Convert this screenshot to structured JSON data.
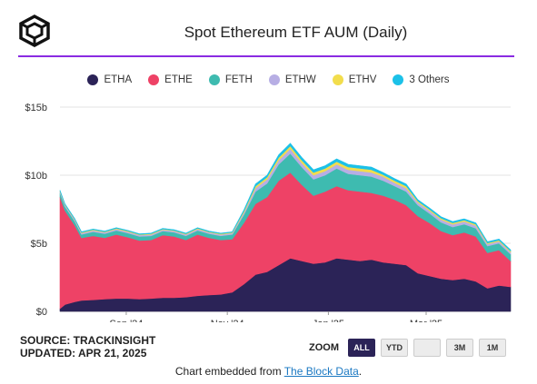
{
  "header": {
    "title": "Spot Ethereum ETF AUM (Daily)"
  },
  "footer": {
    "source": "SOURCE: TRACKINSIGHT",
    "updated": "UPDATED: APR 21, 2025",
    "zoom_label": "ZOOM",
    "zoom_buttons": [
      "ALL",
      "YTD",
      "",
      "3M",
      "1M"
    ],
    "embed_prefix": "Chart embedded from ",
    "embed_link": "The Block Data",
    "embed_suffix": "."
  },
  "chart_data": {
    "type": "area",
    "stacked": true,
    "yticks": [
      "$0",
      "$5b",
      "$10b",
      "$15b"
    ],
    "ylim": [
      0,
      15
    ],
    "y_unit": "billion USD",
    "xticks": [
      {
        "label": "Sep '24",
        "date": "2024-09-01"
      },
      {
        "label": "Nov '24",
        "date": "2024-11-01"
      },
      {
        "label": "Jan '25",
        "date": "2025-01-01"
      },
      {
        "label": "Mar '25",
        "date": "2025-03-01"
      }
    ],
    "x": [
      "2024-07-23",
      "2024-07-26",
      "2024-08-01",
      "2024-08-05",
      "2024-08-12",
      "2024-08-19",
      "2024-08-26",
      "2024-09-02",
      "2024-09-09",
      "2024-09-16",
      "2024-09-23",
      "2024-09-30",
      "2024-10-07",
      "2024-10-14",
      "2024-10-21",
      "2024-10-28",
      "2024-11-04",
      "2024-11-11",
      "2024-11-18",
      "2024-11-25",
      "2024-12-02",
      "2024-12-09",
      "2024-12-16",
      "2024-12-23",
      "2024-12-30",
      "2025-01-06",
      "2025-01-13",
      "2025-01-20",
      "2025-01-27",
      "2025-02-03",
      "2025-02-10",
      "2025-02-17",
      "2025-02-24",
      "2025-03-03",
      "2025-03-10",
      "2025-03-17",
      "2025-03-24",
      "2025-03-31",
      "2025-04-07",
      "2025-04-14",
      "2025-04-21"
    ],
    "series": [
      {
        "name": "ETHA",
        "color": "#2b2357",
        "values": [
          0.2,
          0.5,
          0.7,
          0.8,
          0.85,
          0.9,
          0.95,
          0.95,
          0.9,
          0.95,
          1.0,
          1.0,
          1.05,
          1.15,
          1.2,
          1.25,
          1.4,
          2.0,
          2.7,
          2.9,
          3.4,
          3.9,
          3.7,
          3.5,
          3.6,
          3.9,
          3.8,
          3.7,
          3.8,
          3.6,
          3.5,
          3.4,
          2.8,
          2.6,
          2.4,
          2.3,
          2.4,
          2.2,
          1.7,
          1.9,
          1.8
        ]
      },
      {
        "name": "ETHE",
        "color": "#ee4266",
        "values": [
          8.2,
          6.9,
          5.6,
          4.6,
          4.7,
          4.5,
          4.7,
          4.5,
          4.3,
          4.3,
          4.6,
          4.5,
          4.2,
          4.5,
          4.2,
          4.0,
          3.9,
          4.5,
          5.2,
          5.5,
          6.2,
          6.3,
          5.6,
          5.0,
          5.2,
          5.3,
          5.1,
          5.1,
          4.9,
          4.9,
          4.7,
          4.4,
          4.2,
          3.9,
          3.5,
          3.3,
          3.4,
          3.3,
          2.6,
          2.6,
          1.9
        ]
      },
      {
        "name": "FETH",
        "color": "#3ebbb0",
        "values": [
          0.3,
          0.3,
          0.3,
          0.25,
          0.3,
          0.3,
          0.3,
          0.3,
          0.3,
          0.3,
          0.3,
          0.3,
          0.3,
          0.3,
          0.3,
          0.3,
          0.35,
          0.6,
          0.9,
          1.0,
          1.2,
          1.4,
          1.3,
          1.2,
          1.2,
          1.3,
          1.2,
          1.2,
          1.2,
          1.1,
          1.0,
          1.0,
          0.8,
          0.7,
          0.65,
          0.6,
          0.6,
          0.6,
          0.5,
          0.5,
          0.5
        ]
      },
      {
        "name": "ETHW",
        "color": "#b7aee4",
        "values": [
          0.1,
          0.1,
          0.1,
          0.1,
          0.1,
          0.1,
          0.1,
          0.1,
          0.1,
          0.1,
          0.1,
          0.1,
          0.1,
          0.1,
          0.1,
          0.1,
          0.1,
          0.15,
          0.25,
          0.3,
          0.3,
          0.35,
          0.3,
          0.3,
          0.3,
          0.3,
          0.3,
          0.3,
          0.3,
          0.3,
          0.25,
          0.25,
          0.2,
          0.2,
          0.2,
          0.2,
          0.2,
          0.2,
          0.15,
          0.15,
          0.15
        ]
      },
      {
        "name": "ETHV",
        "color": "#f2dd4c",
        "values": [
          0.05,
          0.05,
          0.05,
          0.05,
          0.05,
          0.05,
          0.05,
          0.05,
          0.05,
          0.05,
          0.05,
          0.05,
          0.05,
          0.05,
          0.05,
          0.05,
          0.05,
          0.1,
          0.15,
          0.15,
          0.2,
          0.2,
          0.2,
          0.2,
          0.2,
          0.2,
          0.2,
          0.2,
          0.2,
          0.15,
          0.15,
          0.15,
          0.1,
          0.1,
          0.1,
          0.1,
          0.1,
          0.1,
          0.08,
          0.08,
          0.08
        ]
      },
      {
        "name": "3 Others",
        "color": "#1cc1e8",
        "values": [
          0.05,
          0.05,
          0.05,
          0.05,
          0.05,
          0.05,
          0.05,
          0.05,
          0.05,
          0.05,
          0.05,
          0.05,
          0.05,
          0.05,
          0.05,
          0.05,
          0.05,
          0.1,
          0.15,
          0.15,
          0.2,
          0.2,
          0.2,
          0.2,
          0.2,
          0.2,
          0.2,
          0.2,
          0.2,
          0.15,
          0.15,
          0.15,
          0.1,
          0.1,
          0.1,
          0.1,
          0.1,
          0.1,
          0.08,
          0.08,
          0.08
        ]
      }
    ],
    "grid": true,
    "legend_position": "top-center"
  }
}
